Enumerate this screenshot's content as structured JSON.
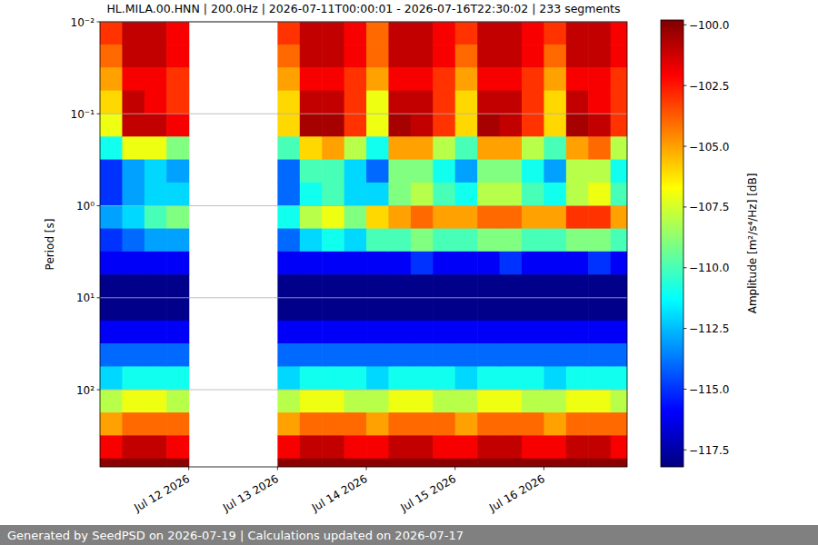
{
  "chart_data": {
    "type": "heatmap",
    "title": "HL.MILA.00.HNN | 200.0Hz | 2026-07-11T00:00:01 - 2026-07-16T22:30:02 | 233 segments",
    "y_label": "Period [s]",
    "footer": "Generated by SeedPSD on 2026-07-19 | Calculations updated on 2026-07-17",
    "log": "y",
    "grid": true,
    "xlim": [
      "2026-07-11T00:00",
      "2026-07-16T22:30"
    ],
    "xticks": [
      {
        "value": "2026-07-12T00:00",
        "label": "Jul 12 2026"
      },
      {
        "value": "2026-07-13T00:00",
        "label": "Jul 13 2026"
      },
      {
        "value": "2026-07-14T00:00",
        "label": "Jul 14 2026"
      },
      {
        "value": "2026-07-15T00:00",
        "label": "Jul 15 2026"
      },
      {
        "value": "2026-07-16T00:00",
        "label": "Jul 16 2026"
      }
    ],
    "ylim": [
      0.01,
      690
    ],
    "yticks": [
      {
        "value": 0.01,
        "label": "10⁻²"
      },
      {
        "value": 0.1,
        "label": "10⁻¹"
      },
      {
        "value": 1,
        "label": "10⁰"
      },
      {
        "value": 10,
        "label": "10¹"
      },
      {
        "value": 100,
        "label": "10²"
      }
    ],
    "x_edges": [
      "2026-07-11T00:00",
      "2026-07-11T06:00",
      "2026-07-11T12:00",
      "2026-07-11T18:00",
      "2026-07-12T00:00",
      "2026-07-12T06:00",
      "2026-07-12T12:00",
      "2026-07-12T18:00",
      "2026-07-13T00:00",
      "2026-07-13T06:00",
      "2026-07-13T12:00",
      "2026-07-13T18:00",
      "2026-07-14T00:00",
      "2026-07-14T06:00",
      "2026-07-14T12:00",
      "2026-07-14T18:00",
      "2026-07-15T00:00",
      "2026-07-15T06:00",
      "2026-07-15T12:00",
      "2026-07-15T18:00",
      "2026-07-16T00:00",
      "2026-07-16T06:00",
      "2026-07-16T12:00",
      "2026-07-16T18:00",
      "2026-07-16T22:30"
    ],
    "y_edges": [
      0.01,
      0.0178,
      0.0316,
      0.0562,
      0.1,
      0.178,
      0.316,
      0.562,
      1,
      1.78,
      3.16,
      5.62,
      10,
      17.8,
      31.6,
      56.2,
      100,
      178,
      316,
      562,
      690
    ],
    "cells": [
      [
        -103,
        -104,
        -105,
        -106,
        -107,
        -111,
        -115,
        -115,
        -113,
        -115,
        -116,
        -118,
        -118,
        -116,
        -114,
        -112,
        -108,
        -105,
        -102,
        -100
      ],
      [
        -101,
        -101,
        -102,
        -101,
        -101,
        -107,
        -113,
        -113,
        -112,
        -114,
        -116,
        -118,
        -118,
        -116,
        -114,
        -111,
        -107,
        -104,
        -101,
        -100
      ],
      [
        -101,
        -101,
        -102,
        -102,
        -101,
        -107,
        -112,
        -112,
        -110,
        -113,
        -116,
        -118,
        -118,
        -116,
        -114,
        -111,
        -107,
        -104,
        -101,
        -100
      ],
      [
        -102,
        -102,
        -103,
        -103,
        -102,
        -109,
        -113,
        -112,
        -109,
        -113,
        -116,
        -118,
        -118,
        -116,
        -114,
        -111,
        -108,
        -104,
        -102,
        -100
      ],
      null,
      null,
      null,
      null,
      [
        -103,
        -104,
        -105,
        -106,
        -106,
        -110,
        -114,
        -114,
        -111,
        -114,
        -116,
        -118,
        -118,
        -116,
        -114,
        -112,
        -108,
        -105,
        -102,
        -100
      ],
      [
        -101,
        -101,
        -102,
        -101,
        -100.5,
        -106,
        -110,
        -111,
        -108,
        -112,
        -116,
        -118,
        -118,
        -116,
        -114,
        -111,
        -107,
        -104,
        -101,
        -100
      ],
      [
        -101,
        -101,
        -102,
        -101,
        -100.5,
        -105,
        -110,
        -110,
        -107,
        -111,
        -116,
        -118,
        -118,
        -116,
        -114,
        -111,
        -107,
        -104,
        -101,
        -100
      ],
      [
        -102,
        -102,
        -103,
        -103,
        -103,
        -108,
        -112,
        -112,
        -109,
        -112,
        -116,
        -118,
        -118,
        -116,
        -114,
        -111,
        -108,
        -104,
        -102,
        -100
      ],
      [
        -104,
        -104,
        -105,
        -107,
        -107,
        -111,
        -114,
        -112,
        -106,
        -110,
        -116,
        -118,
        -118,
        -116,
        -114,
        -112,
        -108,
        -105,
        -102,
        -100
      ],
      [
        -101,
        -101,
        -102,
        -101,
        -100.5,
        -105,
        -109,
        -109,
        -105,
        -110,
        -116,
        -118,
        -118,
        -116,
        -114,
        -111,
        -107,
        -104,
        -101,
        -100
      ],
      [
        -101,
        -101,
        -102,
        -101,
        -101,
        -105,
        -109,
        -108,
        -104,
        -109,
        -115,
        -118,
        -118,
        -116,
        -114,
        -111,
        -107,
        -104,
        -101,
        -100
      ],
      [
        -102,
        -102,
        -103,
        -103,
        -103,
        -108,
        -111,
        -110,
        -105,
        -110,
        -116,
        -118,
        -118,
        -116,
        -114,
        -111,
        -108,
        -104,
        -102,
        -100
      ],
      [
        -103,
        -104,
        -105,
        -106,
        -106,
        -110,
        -113,
        -111,
        -105,
        -110,
        -116,
        -118,
        -118,
        -116,
        -114,
        -112,
        -108,
        -105,
        -102,
        -100
      ],
      [
        -101,
        -101,
        -102,
        -101,
        -100.5,
        -105,
        -109,
        -108,
        -104,
        -109,
        -116,
        -118,
        -118,
        -116,
        -114,
        -111,
        -107,
        -104,
        -101,
        -100
      ],
      [
        -101,
        -101,
        -102,
        -101,
        -101,
        -105,
        -109,
        -108,
        -104,
        -109,
        -115,
        -118,
        -118,
        -116,
        -114,
        -111,
        -107,
        -104,
        -101,
        -100
      ],
      [
        -102,
        -102,
        -103,
        -103,
        -103,
        -108,
        -111,
        -110,
        -105,
        -110,
        -116,
        -118,
        -118,
        -116,
        -114,
        -111,
        -108,
        -104,
        -102,
        -100
      ],
      [
        -103,
        -104,
        -105,
        -106,
        -106,
        -110,
        -113,
        -111,
        -105,
        -110,
        -116,
        -118,
        -118,
        -116,
        -114,
        -112,
        -108,
        -105,
        -102,
        -100
      ],
      [
        -101,
        -101,
        -102,
        -101,
        -100.5,
        -105,
        -108,
        -108,
        -103,
        -109,
        -116,
        -118,
        -118,
        -116,
        -114,
        -111,
        -107,
        -104,
        -101,
        -100
      ],
      [
        -101,
        -101,
        -102,
        -102,
        -101,
        -104,
        -108,
        -107,
        -103,
        -109,
        -115,
        -118,
        -118,
        -116,
        -114,
        -111,
        -107,
        -104,
        -101,
        -100
      ],
      [
        -102,
        -102,
        -103,
        -103,
        -103,
        -108,
        -111,
        -110,
        -105,
        -110,
        -116,
        -118,
        -118,
        -116,
        -114,
        -111,
        -108,
        -104,
        -102,
        -100
      ]
    ],
    "colorbar": {
      "label": "Amplitude [m²/s⁴/Hz] [dB]",
      "range": [
        -118.2,
        -99.8
      ],
      "ticks": [
        {
          "value": -100,
          "label": "−100.0"
        },
        {
          "value": -102.5,
          "label": "−102.5"
        },
        {
          "value": -105,
          "label": "−105.0"
        },
        {
          "value": -107.5,
          "label": "−107.5"
        },
        {
          "value": -110,
          "label": "−110.0"
        },
        {
          "value": -112.5,
          "label": "−112.5"
        },
        {
          "value": -115,
          "label": "−115.0"
        },
        {
          "value": -117.5,
          "label": "−117.5"
        }
      ]
    }
  }
}
